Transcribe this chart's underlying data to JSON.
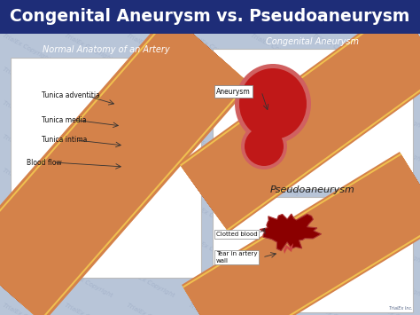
{
  "title": "Congenital Aneurysm vs. Pseudoaneurysm",
  "title_bg_color": "#1e2d78",
  "title_text_color": "#ffffff",
  "bg_color": "#b8c5d8",
  "panel_bg": "#ffffff",
  "left_panel_label": "Normal Anatomy of an Artery",
  "left_labels": [
    "Tunica adventitia",
    "Tunica media",
    "Tunica intima",
    "Blood flow"
  ],
  "top_right_label": "Congenital Aneurysm",
  "top_right_sublabel": "Aneurysm",
  "bottom_right_label": "Pseudoaneurysm",
  "bottom_right_labels": [
    "Clotted blood",
    "Tear in artery\nwall"
  ],
  "artery_outer_color": "#d4824a",
  "artery_yellow_color": "#e8b84a",
  "artery_media_color": "#c03030",
  "artery_intima_color": "#d04040",
  "artery_blood_color": "#6b0000",
  "aneurysm_red": "#c01818",
  "aneurysm_dark": "#8b0000"
}
